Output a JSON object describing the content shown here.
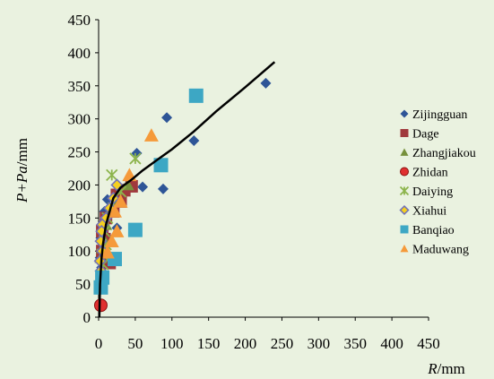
{
  "chart_data": {
    "type": "scatter",
    "title": "",
    "xlabel_var": "R",
    "xlabel_unit": "/mm",
    "ylabel_var": "P+Pa",
    "ylabel_unit": "/mm",
    "xlim": [
      0,
      450
    ],
    "ylim": [
      0,
      450
    ],
    "xticks": [
      "0",
      "50",
      "100",
      "150",
      "200",
      "250",
      "300",
      "350",
      "400",
      "450"
    ],
    "yticks": [
      "0",
      "50",
      "100",
      "150",
      "200",
      "250",
      "300",
      "350",
      "400",
      "450"
    ],
    "grid": false,
    "legend_position": "right",
    "series": [
      {
        "name": "Zijingguan",
        "marker": "diamond",
        "color": "#2e5597",
        "points": [
          [
            228,
            354
          ],
          [
            93,
            302
          ],
          [
            130,
            267
          ],
          [
            52,
            248
          ],
          [
            88,
            194
          ],
          [
            60,
            197
          ],
          [
            20,
            180
          ],
          [
            12,
            178
          ],
          [
            8,
            160
          ],
          [
            5,
            140
          ],
          [
            25,
            135
          ],
          [
            3,
            120
          ],
          [
            5,
            100
          ],
          [
            2,
            90
          ],
          [
            4,
            75
          ],
          [
            3,
            60
          ],
          [
            6,
            55
          ]
        ]
      },
      {
        "name": "Dage",
        "marker": "square",
        "color": "#a0393d",
        "points": [
          [
            45,
            198
          ],
          [
            35,
            192
          ],
          [
            25,
            185
          ],
          [
            30,
            175
          ],
          [
            20,
            160
          ],
          [
            10,
            150
          ],
          [
            5,
            130
          ],
          [
            8,
            118
          ],
          [
            5,
            100
          ],
          [
            15,
            82
          ]
        ]
      },
      {
        "name": "Zhangjiakou",
        "marker": "triangle",
        "color": "#77913c",
        "points": [
          [
            40,
            200
          ],
          [
            25,
            175
          ],
          [
            15,
            160
          ],
          [
            10,
            140
          ],
          [
            6,
            120
          ],
          [
            5,
            105
          ],
          [
            3,
            90
          ],
          [
            4,
            70
          ]
        ]
      },
      {
        "name": "Zhidan",
        "marker": "circle",
        "color": "#e03030",
        "points": [
          [
            3,
            18
          ]
        ]
      },
      {
        "name": "Daiying",
        "marker": "star",
        "color": "#8cb44c",
        "points": [
          [
            18,
            215
          ],
          [
            50,
            240
          ],
          [
            30,
            190
          ],
          [
            20,
            165
          ],
          [
            12,
            150
          ],
          [
            8,
            130
          ],
          [
            10,
            110
          ],
          [
            5,
            95
          ],
          [
            6,
            80
          ]
        ]
      },
      {
        "name": "Xiahui",
        "marker": "diamond-open",
        "color": "#7070b8",
        "points": [
          [
            25,
            200
          ],
          [
            20,
            180
          ],
          [
            15,
            165
          ],
          [
            10,
            150
          ],
          [
            5,
            140
          ],
          [
            4,
            130
          ],
          [
            3,
            115
          ],
          [
            5,
            100
          ],
          [
            2,
            85
          ],
          [
            3,
            70
          ],
          [
            4,
            50
          ]
        ]
      },
      {
        "name": "Banqiao",
        "marker": "square",
        "color": "#3da7c4",
        "points": [
          [
            133,
            335
          ],
          [
            85,
            230
          ],
          [
            50,
            132
          ],
          [
            22,
            88
          ],
          [
            5,
            60
          ],
          [
            3,
            45
          ]
        ]
      },
      {
        "name": "Maduwang",
        "marker": "triangle",
        "color": "#f59a3a",
        "points": [
          [
            72,
            275
          ],
          [
            42,
            215
          ],
          [
            30,
            175
          ],
          [
            22,
            160
          ],
          [
            25,
            130
          ],
          [
            18,
            115
          ],
          [
            12,
            98
          ]
        ]
      }
    ],
    "fit_curve": {
      "color": "#000000",
      "points": [
        [
          1,
          0
        ],
        [
          2,
          50
        ],
        [
          4,
          90
        ],
        [
          6,
          110
        ],
        [
          10,
          140
        ],
        [
          15,
          160
        ],
        [
          20,
          180
        ],
        [
          30,
          196
        ],
        [
          45,
          208
        ],
        [
          60,
          222
        ],
        [
          80,
          238
        ],
        [
          100,
          254
        ],
        [
          130,
          281
        ],
        [
          160,
          311
        ],
        [
          200,
          348
        ],
        [
          240,
          386
        ]
      ]
    }
  }
}
